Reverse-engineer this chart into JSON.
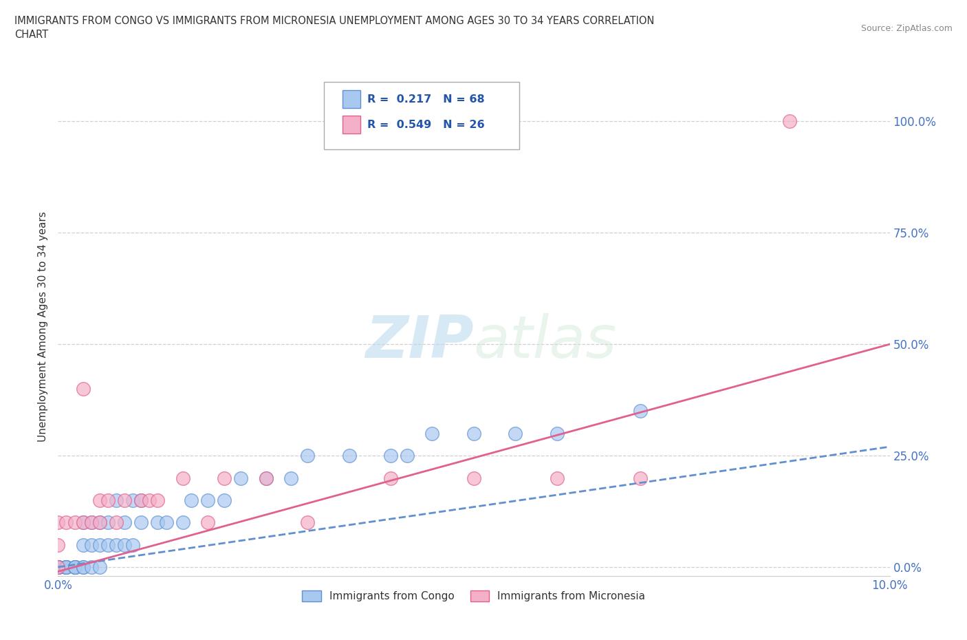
{
  "title": "IMMIGRANTS FROM CONGO VS IMMIGRANTS FROM MICRONESIA UNEMPLOYMENT AMONG AGES 30 TO 34 YEARS CORRELATION\nCHART",
  "source": "Source: ZipAtlas.com",
  "ylabel": "Unemployment Among Ages 30 to 34 years",
  "xlim": [
    0.0,
    0.1
  ],
  "ylim": [
    -0.02,
    1.1
  ],
  "ytick_vals": [
    0.0,
    0.25,
    0.5,
    0.75,
    1.0
  ],
  "ytick_labels": [
    "0.0%",
    "25.0%",
    "50.0%",
    "75.0%",
    "100.0%"
  ],
  "xtick_vals": [
    0.0,
    0.1
  ],
  "xtick_labels": [
    "0.0%",
    "10.0%"
  ],
  "congo_color": "#a8c8f0",
  "micronesia_color": "#f4b0c8",
  "congo_edge_color": "#6090d0",
  "micronesia_edge_color": "#e06090",
  "congo_line_color": "#6090d0",
  "micronesia_line_color": "#e06090",
  "watermark_zip": "ZIP",
  "watermark_atlas": "atlas",
  "legend_r_congo": "R =  0.217",
  "legend_n_congo": "N = 68",
  "legend_r_micro": "R =  0.549",
  "legend_n_micro": "N = 26",
  "congo_x": [
    0.0,
    0.0,
    0.0,
    0.0,
    0.0,
    0.0,
    0.0,
    0.0,
    0.0,
    0.0,
    0.0,
    0.0,
    0.0,
    0.0,
    0.0,
    0.0,
    0.0,
    0.0,
    0.0,
    0.0,
    0.001,
    0.001,
    0.001,
    0.001,
    0.001,
    0.002,
    0.002,
    0.002,
    0.002,
    0.002,
    0.003,
    0.003,
    0.003,
    0.003,
    0.004,
    0.004,
    0.004,
    0.005,
    0.005,
    0.005,
    0.006,
    0.006,
    0.007,
    0.007,
    0.008,
    0.008,
    0.009,
    0.009,
    0.01,
    0.01,
    0.012,
    0.013,
    0.015,
    0.016,
    0.018,
    0.02,
    0.022,
    0.025,
    0.028,
    0.03,
    0.035,
    0.04,
    0.042,
    0.045,
    0.05,
    0.055,
    0.06,
    0.07
  ],
  "congo_y": [
    0.0,
    0.0,
    0.0,
    0.0,
    0.0,
    0.0,
    0.0,
    0.0,
    0.0,
    0.0,
    0.0,
    0.0,
    0.0,
    0.0,
    0.0,
    0.0,
    0.0,
    0.0,
    0.0,
    0.0,
    0.0,
    0.0,
    0.0,
    0.0,
    0.0,
    0.0,
    0.0,
    0.0,
    0.0,
    0.0,
    0.0,
    0.0,
    0.05,
    0.1,
    0.0,
    0.05,
    0.1,
    0.0,
    0.05,
    0.1,
    0.05,
    0.1,
    0.05,
    0.15,
    0.05,
    0.1,
    0.05,
    0.15,
    0.1,
    0.15,
    0.1,
    0.1,
    0.1,
    0.15,
    0.15,
    0.15,
    0.2,
    0.2,
    0.2,
    0.25,
    0.25,
    0.25,
    0.25,
    0.3,
    0.3,
    0.3,
    0.3,
    0.35
  ],
  "micronesia_x": [
    0.0,
    0.0,
    0.0,
    0.001,
    0.002,
    0.003,
    0.003,
    0.004,
    0.005,
    0.005,
    0.006,
    0.007,
    0.008,
    0.01,
    0.011,
    0.012,
    0.015,
    0.018,
    0.02,
    0.025,
    0.03,
    0.04,
    0.05,
    0.06,
    0.07,
    0.088
  ],
  "micronesia_y": [
    0.0,
    0.05,
    0.1,
    0.1,
    0.1,
    0.1,
    0.4,
    0.1,
    0.1,
    0.15,
    0.15,
    0.1,
    0.15,
    0.15,
    0.15,
    0.15,
    0.2,
    0.1,
    0.2,
    0.2,
    0.1,
    0.2,
    0.2,
    0.2,
    0.2,
    1.0
  ],
  "micro_trend_x0": 0.0,
  "micro_trend_y0": -0.01,
  "micro_trend_x1": 0.1,
  "micro_trend_y1": 0.5,
  "congo_trend_x0": 0.0,
  "congo_trend_y0": 0.0,
  "congo_trend_x1": 0.1,
  "congo_trend_y1": 0.27
}
